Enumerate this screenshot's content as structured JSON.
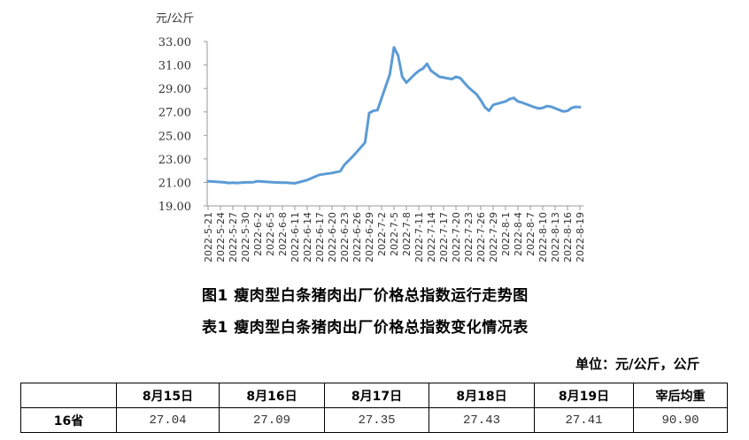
{
  "chart_data": {
    "type": "line",
    "title": "图1 瘦肉型白条猪肉出厂价格总指数运行走势图",
    "ylabel": "元/公斤",
    "xlabel": "",
    "ylim": [
      19.0,
      33.0
    ],
    "yticks": [
      "19.00",
      "21.00",
      "23.00",
      "25.00",
      "27.00",
      "29.00",
      "31.00",
      "33.00"
    ],
    "grid": false,
    "legend": null,
    "line_color": "#5B9BD5",
    "x_tick_labels": [
      "2022-5-21",
      "2022-5-24",
      "2022-5-27",
      "2022-5-30",
      "2022-6-2",
      "2022-6-5",
      "2022-6-8",
      "2022-6-11",
      "2022-6-14",
      "2022-6-17",
      "2022-6-20",
      "2022-6-23",
      "2022-6-26",
      "2022-6-29",
      "2022-7-2",
      "2022-7-5",
      "2022-7-8",
      "2022-7-11",
      "2022-7-14",
      "2022-7-17",
      "2022-7-20",
      "2022-7-23",
      "2022-7-26",
      "2022-7-29",
      "2022-8-1",
      "2022-8-4",
      "2022-8-7",
      "2022-8-10",
      "2022-8-13",
      "2022-8-16",
      "2022-8-19"
    ],
    "series": [
      {
        "name": "瘦肉型白条猪肉出厂价格总指数",
        "x": [
          "2022-5-21",
          "2022-5-23",
          "2022-5-25",
          "2022-5-26",
          "2022-5-27",
          "2022-5-28",
          "2022-5-30",
          "2022-6-1",
          "2022-6-2",
          "2022-6-4",
          "2022-6-6",
          "2022-6-8",
          "2022-6-9",
          "2022-6-10",
          "2022-6-11",
          "2022-6-13",
          "2022-6-14",
          "2022-6-16",
          "2022-6-17",
          "2022-6-20",
          "2022-6-22",
          "2022-6-23",
          "2022-6-25",
          "2022-6-27",
          "2022-6-28",
          "2022-6-29",
          "2022-6-30",
          "2022-7-1",
          "2022-7-4",
          "2022-7-5",
          "2022-7-6",
          "2022-7-7",
          "2022-7-8",
          "2022-7-10",
          "2022-7-11",
          "2022-7-12",
          "2022-7-13",
          "2022-7-14",
          "2022-7-16",
          "2022-7-19",
          "2022-7-20",
          "2022-7-21",
          "2022-7-23",
          "2022-7-25",
          "2022-7-26",
          "2022-7-27",
          "2022-7-28",
          "2022-7-29",
          "2022-8-1",
          "2022-8-2",
          "2022-8-3",
          "2022-8-4",
          "2022-8-5",
          "2022-8-8",
          "2022-8-9",
          "2022-8-10",
          "2022-8-11",
          "2022-8-12",
          "2022-8-15",
          "2022-8-16",
          "2022-8-17",
          "2022-8-18",
          "2022-8-19"
        ],
        "values": [
          21.1,
          21.05,
          21.0,
          20.95,
          20.98,
          20.95,
          21.0,
          21.02,
          21.1,
          21.05,
          21.0,
          20.98,
          20.98,
          20.95,
          20.92,
          21.1,
          21.2,
          21.5,
          21.65,
          21.8,
          21.95,
          22.5,
          23.2,
          24.0,
          24.4,
          26.9,
          27.1,
          27.15,
          30.2,
          32.5,
          31.8,
          30.0,
          29.5,
          30.2,
          30.5,
          30.7,
          31.1,
          30.5,
          30.0,
          29.8,
          30.0,
          29.9,
          29.1,
          28.5,
          28.0,
          27.4,
          27.1,
          27.6,
          27.9,
          28.1,
          28.2,
          27.9,
          27.8,
          27.4,
          27.3,
          27.35,
          27.5,
          27.45,
          27.04,
          27.09,
          27.35,
          27.43,
          27.41
        ]
      }
    ],
    "table": {
      "title": "表1 瘦肉型白条猪肉出厂价格总指数变化情况表",
      "unit": "单位：元/公斤，公斤",
      "columns": [
        "",
        "8月15日",
        "8月16日",
        "8月17日",
        "8月18日",
        "8月19日",
        "宰后均重"
      ],
      "rows": [
        {
          "label": "16省",
          "values": [
            "27.04",
            "27.09",
            "27.35",
            "27.43",
            "27.41",
            "90.90"
          ]
        }
      ]
    }
  },
  "captions": {
    "figure": "图1 瘦肉型白条猪肉出厂价格总指数运行走势图",
    "table": "表1 瘦肉型白条猪肉出厂价格总指数变化情况表",
    "unit": "单位：元/公斤，公斤"
  },
  "table": {
    "header": [
      "",
      "8月15日",
      "8月16日",
      "8月17日",
      "8月18日",
      "8月19日",
      "宰后均重"
    ],
    "row": [
      "16省",
      "27.04",
      "27.09",
      "27.35",
      "27.43",
      "27.41",
      "90.90"
    ]
  }
}
